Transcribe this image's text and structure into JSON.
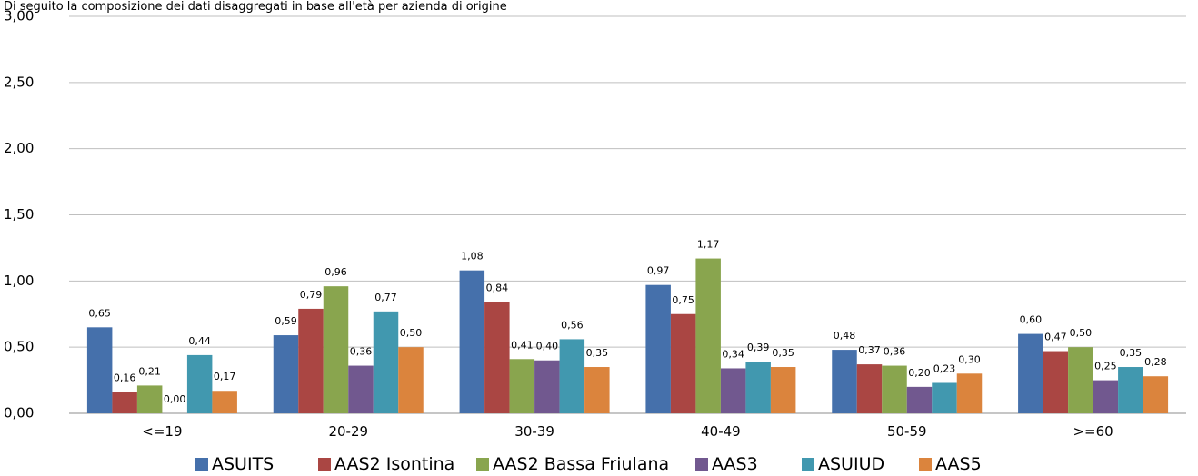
{
  "top_text": "Di seguito la composizione dei dati disaggregati in base all'età per azienda di origine",
  "chart_data": {
    "type": "bar",
    "categories": [
      "<=19",
      "20-29",
      "30-39",
      "40-49",
      "50-59",
      ">=60"
    ],
    "ylim": [
      0,
      3
    ],
    "yticks": [
      "0,00",
      "0,50",
      "1,00",
      "1,50",
      "2,00",
      "2,50",
      "3,00"
    ],
    "grid": true,
    "legend_position": "bottom",
    "series": [
      {
        "name": "ASUITS",
        "color": "#4570ab",
        "values": [
          0.65,
          0.59,
          1.08,
          0.97,
          0.48,
          0.6
        ],
        "labels": [
          "0,65",
          "0,59",
          "1,08",
          "0,97",
          "0,48",
          "0,60"
        ]
      },
      {
        "name": "AAS2 Isontina",
        "color": "#aa4643",
        "values": [
          0.16,
          0.79,
          0.84,
          0.75,
          0.37,
          0.47
        ],
        "labels": [
          "0,16",
          "0,79",
          "0,84",
          "0,75",
          "0,37",
          "0,47"
        ]
      },
      {
        "name": "AAS2 Bassa Friulana",
        "color": "#89a54e",
        "values": [
          0.21,
          0.96,
          0.41,
          1.17,
          0.36,
          0.5
        ],
        "labels": [
          "0,21",
          "0,96",
          "0,41",
          "1,17",
          "0,36",
          "0,50"
        ]
      },
      {
        "name": "AAS3",
        "color": "#71588f",
        "values": [
          0.0,
          0.36,
          0.4,
          0.34,
          0.2,
          0.25
        ],
        "labels": [
          "0,00",
          "0,36",
          "0,40",
          "0,34",
          "0,20",
          "0,25"
        ]
      },
      {
        "name": "ASUIUD",
        "color": "#4198af",
        "values": [
          0.44,
          0.77,
          0.56,
          0.39,
          0.23,
          0.35
        ],
        "labels": [
          "0,44",
          "0,77",
          "0,56",
          "0,39",
          "0,23",
          "0,35"
        ]
      },
      {
        "name": "AAS5",
        "color": "#db843d",
        "values": [
          0.17,
          0.5,
          0.35,
          0.35,
          0.3,
          0.28
        ],
        "labels": [
          "0,17",
          "0,50",
          "0,35",
          "0,35",
          "0,30",
          "0,28"
        ]
      }
    ]
  }
}
